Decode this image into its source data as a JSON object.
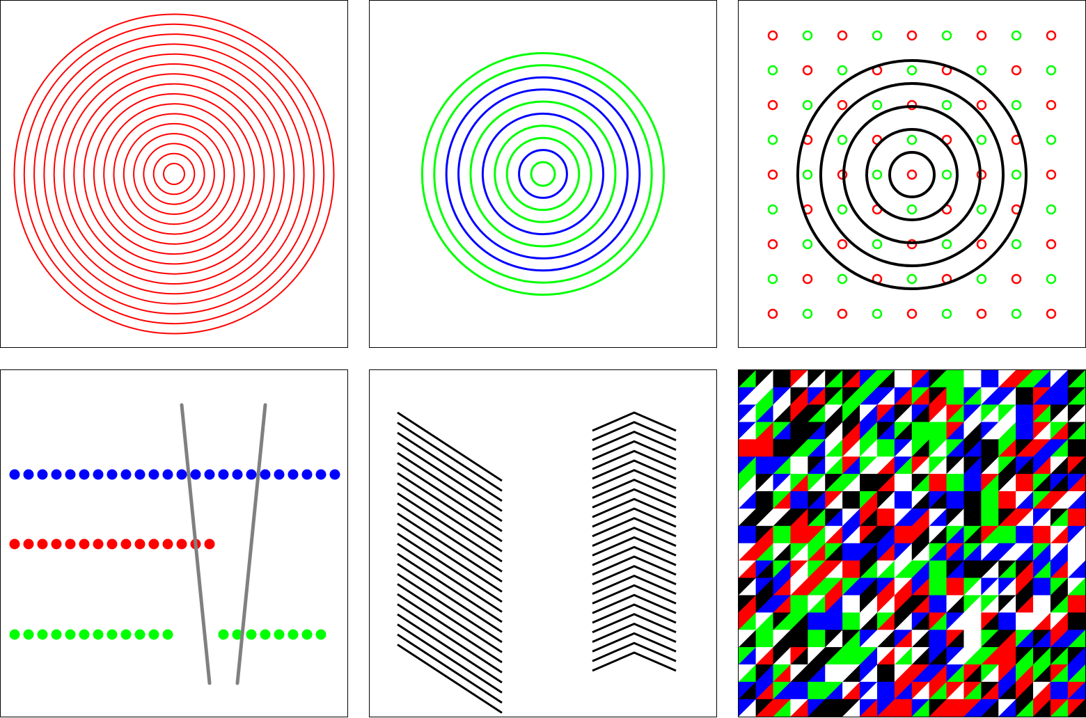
{
  "colors": {
    "red": "#ff0000",
    "green": "#00ff00",
    "blue": "#0000ff",
    "black": "#000000",
    "white": "#ffffff",
    "gray": "#808080"
  },
  "panels": [
    {
      "name": "concentric-red-circles-panel",
      "ring_count": 16,
      "ring_colors": [
        "red"
      ]
    },
    {
      "name": "concentric-green-blue-circles-panel",
      "ring_count": 10,
      "ring_colors": [
        "green",
        "blue"
      ]
    },
    {
      "name": "black-rings-over-dot-grid-panel",
      "ring_count": 5,
      "dot_grid_size": 9,
      "dot_colors": [
        "red",
        "green"
      ]
    },
    {
      "name": "dot-rows-and-slanted-bars-panel",
      "dot_rows": [
        {
          "color": "blue",
          "count": 24
        },
        {
          "color": "red",
          "count": 15
        },
        {
          "color": "green",
          "count": 12
        },
        {
          "color": "green",
          "count": 8
        }
      ],
      "bar_color": "gray"
    },
    {
      "name": "slanted-and-chevron-lines-panel",
      "slanted_line_count": 24,
      "chevron_line_count": 26
    },
    {
      "name": "random-triangle-mosaic-panel",
      "mosaic_grid_size": 20,
      "mosaic_colors": [
        "red",
        "green",
        "blue",
        "black",
        "white"
      ]
    }
  ]
}
